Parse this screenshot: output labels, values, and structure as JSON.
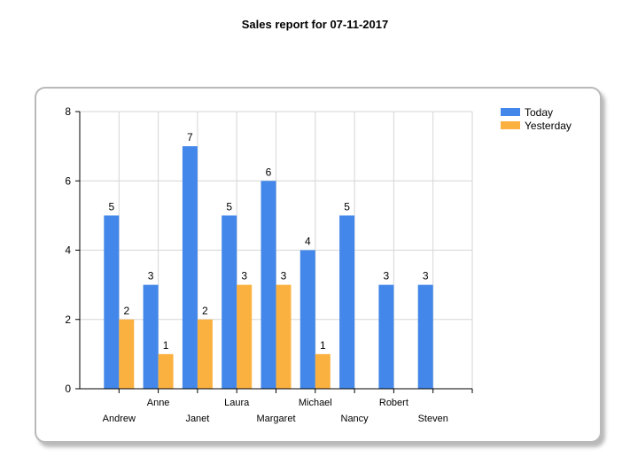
{
  "title": "Sales report for 07-11-2017",
  "colors": {
    "today": "#4287e9",
    "yesterday": "#fbb13f",
    "grid": "#d6d6d6",
    "axis": "#000000"
  },
  "chart_data": {
    "type": "bar",
    "title": "Sales report for 07-11-2017",
    "categories": [
      "Andrew",
      "Anne",
      "Janet",
      "Laura",
      "Margaret",
      "Michael",
      "Nancy",
      "Robert",
      "Steven"
    ],
    "series": [
      {
        "name": "Today",
        "values": [
          5,
          3,
          7,
          5,
          6,
          4,
          5,
          3,
          3
        ]
      },
      {
        "name": "Yesterday",
        "values": [
          2,
          1,
          2,
          3,
          3,
          1,
          null,
          null,
          null
        ]
      }
    ],
    "ylim": [
      0,
      8
    ],
    "yticks": [
      0,
      2,
      4,
      6,
      8
    ],
    "grid": true,
    "legend": "top-right",
    "data_labels": true
  }
}
